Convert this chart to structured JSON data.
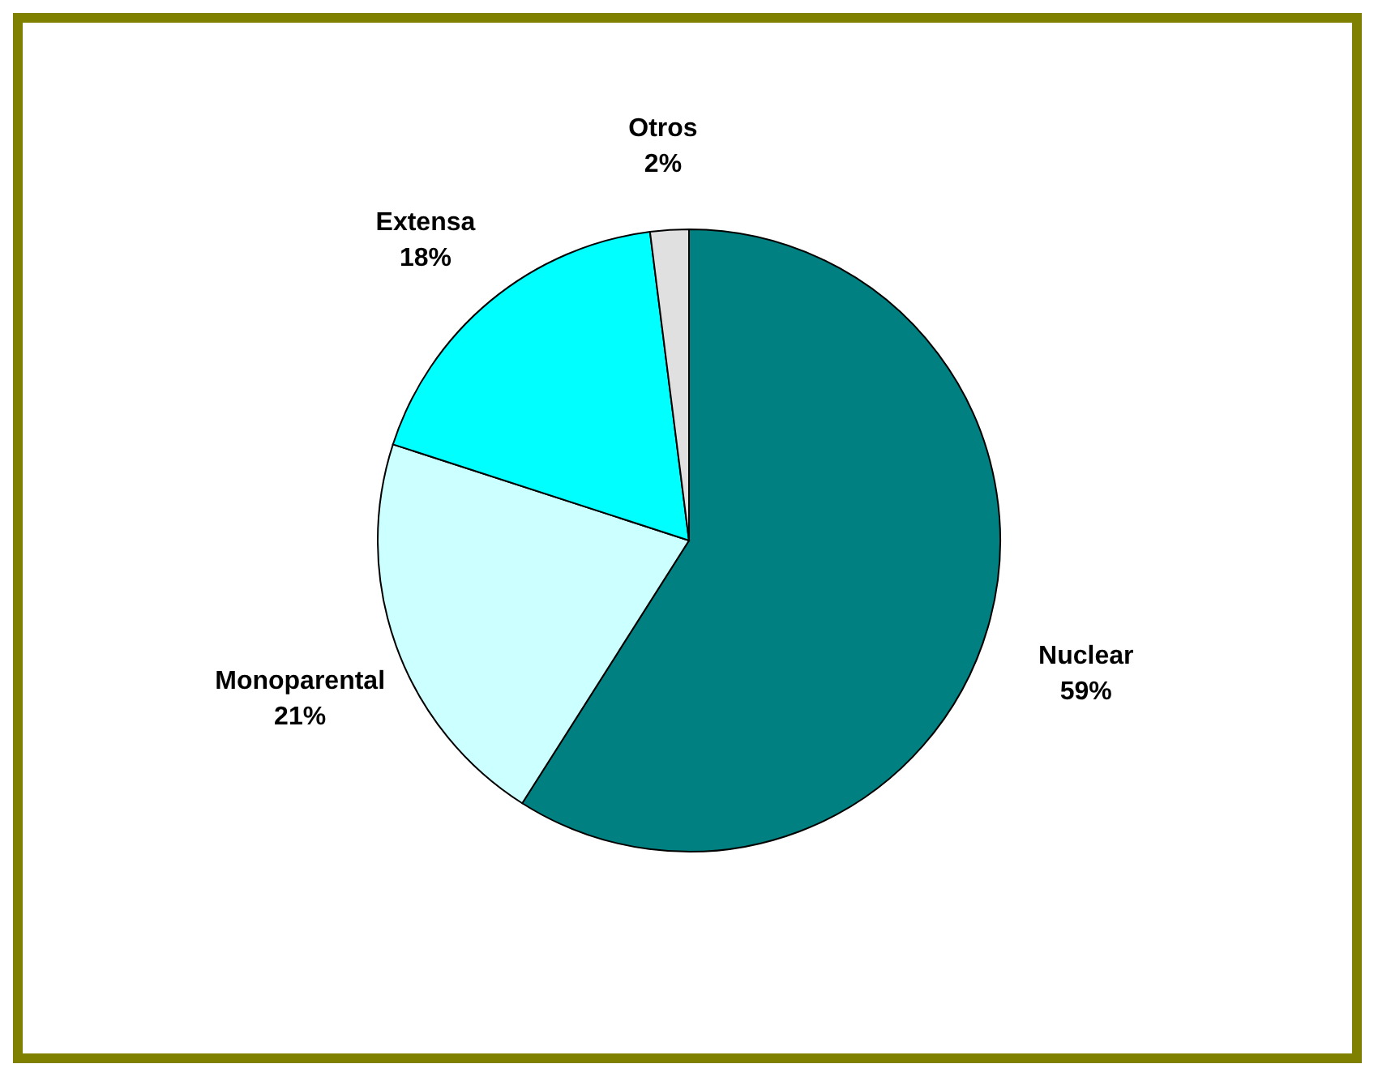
{
  "chart_data": {
    "type": "pie",
    "categories": [
      "Nuclear",
      "Monoparental",
      "Extensa",
      "Otros"
    ],
    "values": [
      59,
      21,
      18,
      2
    ],
    "colors": [
      "#008080",
      "#ccffff",
      "#00ffff",
      "#e0e0e0"
    ],
    "value_labels": [
      "59%",
      "21%",
      "18%",
      "2%"
    ]
  }
}
